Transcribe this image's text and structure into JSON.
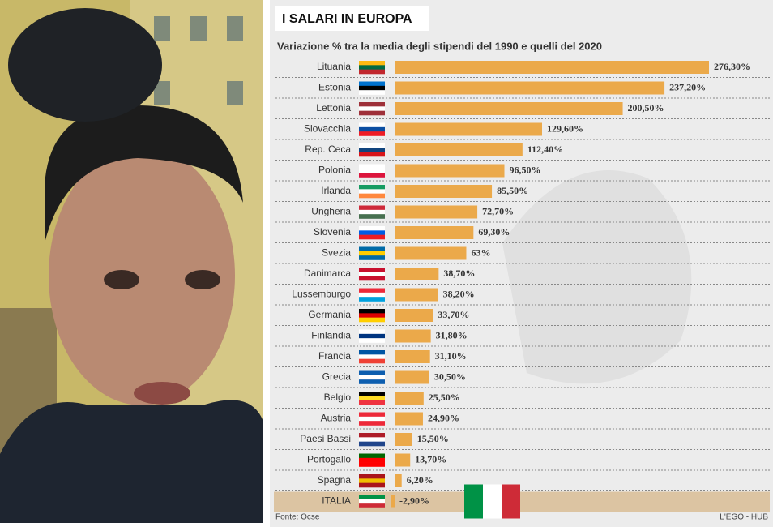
{
  "chart_data": {
    "type": "bar",
    "orientation": "horizontal",
    "title": "I SALARI IN EUROPA",
    "subtitle": "Variazione % tra la media degli stipendi del 1990 e quelli del  2020",
    "source": "Fonte: Ocse",
    "credit": "L'EGO - HUB",
    "categories": [
      "Lituania",
      "Estonia",
      "Lettonia",
      "Slovacchia",
      "Rep. Ceca",
      "Polonia",
      "Irlanda",
      "Ungheria",
      "Slovenia",
      "Svezia",
      "Danimarca",
      "Lussemburgo",
      "Germania",
      "Finlandia",
      "Francia",
      "Grecia",
      "Belgio",
      "Austria",
      "Paesi Bassi",
      "Portogallo",
      "Spagna",
      "ITALIA"
    ],
    "values": [
      276.3,
      237.2,
      200.5,
      129.6,
      112.4,
      96.5,
      85.5,
      72.7,
      69.3,
      63,
      38.7,
      38.2,
      33.7,
      31.8,
      31.1,
      30.5,
      25.5,
      24.9,
      15.5,
      13.7,
      6.2,
      -2.9
    ],
    "value_labels": [
      "276,30%",
      "237,20%",
      "200,50%",
      "129,60%",
      "112,40%",
      "96,50%",
      "85,50%",
      "72,70%",
      "69,30%",
      "63%",
      "38,70%",
      "38,20%",
      "33,70%",
      "31,80%",
      "31,10%",
      "30,50%",
      "25,50%",
      "24,90%",
      "15,50%",
      "13,70%",
      "6,20%",
      "-2,90%"
    ],
    "color": "#eba94a"
  }
}
